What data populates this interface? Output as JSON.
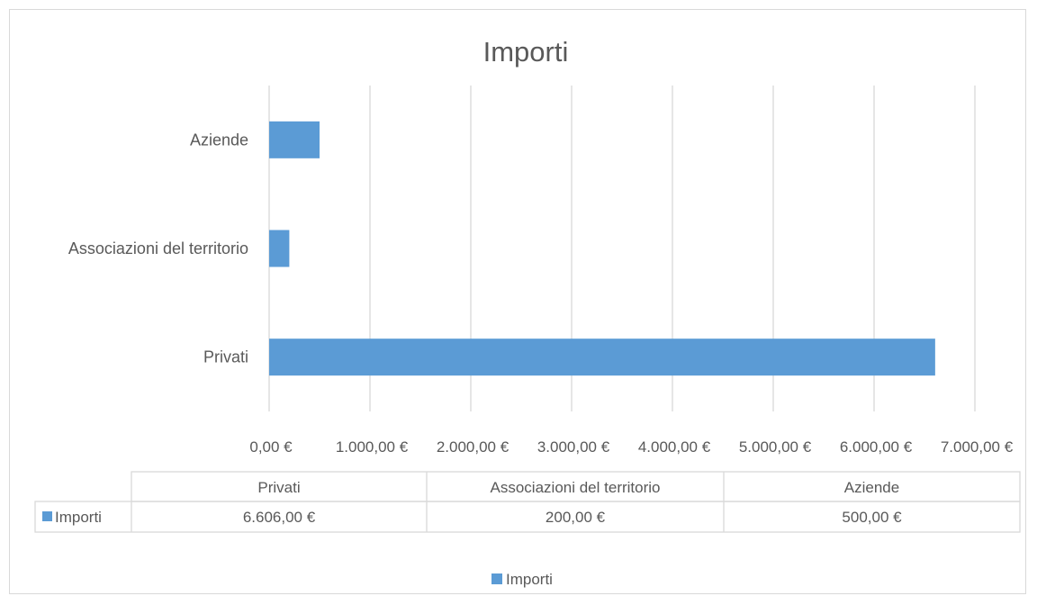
{
  "chart_data": {
    "type": "bar",
    "orientation": "horizontal",
    "title": "Importi",
    "categories": [
      "Privati",
      "Associazioni del territorio",
      "Aziende"
    ],
    "series": [
      {
        "name": "Importi",
        "values": [
          6606,
          200,
          500
        ],
        "color": "#5b9bd5"
      }
    ],
    "xlim": [
      0,
      7000
    ],
    "xticks": [
      0,
      1000,
      2000,
      3000,
      4000,
      5000,
      6000,
      7000
    ],
    "xtick_labels": [
      "0,00 €",
      "1.000,00 €",
      "2.000,00 €",
      "3.000,00 €",
      "4.000,00 €",
      "5.000,00 €",
      "6.000,00 €",
      "7.000,00 €"
    ],
    "grid": true,
    "legend": {
      "position": "bottom",
      "entries": [
        "Importi"
      ]
    },
    "data_table": {
      "headers": [
        "Privati",
        "Associazioni del territorio",
        "Aziende"
      ],
      "rows": [
        {
          "label": "Importi",
          "cells": [
            "6.606,00 €",
            "200,00 €",
            "500,00 €"
          ]
        }
      ]
    }
  }
}
